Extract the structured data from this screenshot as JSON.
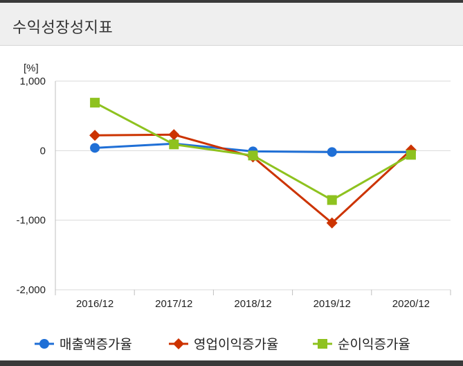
{
  "header": {
    "title": "수익성장성지표"
  },
  "chart_data": {
    "type": "line",
    "unit_label": "[%]",
    "categories": [
      "2016/12",
      "2017/12",
      "2018/12",
      "2019/12",
      "2020/12"
    ],
    "ylim": [
      -2000,
      1000
    ],
    "y_ticks": [
      1000,
      0,
      -1000,
      -2000
    ],
    "y_tick_labels": [
      "1,000",
      "0",
      "-1,000",
      "-2,000"
    ],
    "grid": true,
    "legend_position": "bottom",
    "series": [
      {
        "name": "매출액증가율",
        "marker": "circle",
        "color": "#1f6fd6",
        "values": [
          40,
          100,
          -10,
          -20,
          -20
        ]
      },
      {
        "name": "영업이익증가율",
        "marker": "diamond",
        "color": "#cc3300",
        "values": [
          220,
          230,
          -90,
          -1040,
          10
        ]
      },
      {
        "name": "순이익증가율",
        "marker": "square",
        "color": "#8ec21f",
        "values": [
          690,
          90,
          -70,
          -710,
          -60
        ]
      }
    ]
  }
}
